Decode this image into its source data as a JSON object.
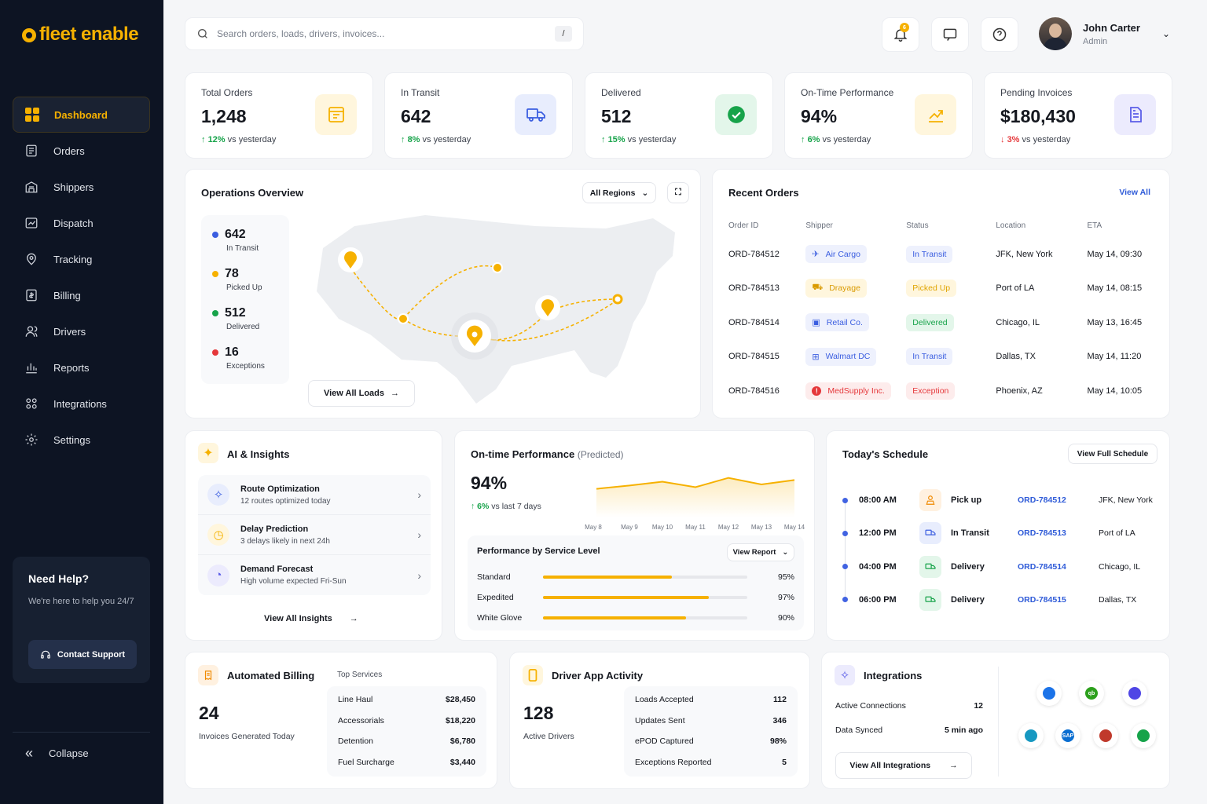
{
  "brand": {
    "name": "fleet enable"
  },
  "nav": [
    {
      "label": "Dashboard",
      "icon": "grid-icon",
      "active": true
    },
    {
      "label": "Orders",
      "icon": "orders-icon"
    },
    {
      "label": "Shippers",
      "icon": "shippers-icon"
    },
    {
      "label": "Dispatch",
      "icon": "dispatch-icon"
    },
    {
      "label": "Tracking",
      "icon": "location-pin-icon"
    },
    {
      "label": "Billing",
      "icon": "billing-icon"
    },
    {
      "label": "Drivers",
      "icon": "drivers-icon"
    },
    {
      "label": "Reports",
      "icon": "reports-icon"
    },
    {
      "label": "Integrations",
      "icon": "integrations-icon"
    },
    {
      "label": "Settings",
      "icon": "gear-icon"
    }
  ],
  "help": {
    "title": "Need Help?",
    "text": "We're here to help you 24/7",
    "button": "Contact Support"
  },
  "collapse": "Collapse",
  "search": {
    "placeholder": "Search orders, loads, drivers, invoices...",
    "shortcut": "/"
  },
  "notifications": {
    "count": "6"
  },
  "user": {
    "name": "John Carter",
    "role": "Admin"
  },
  "kpis": [
    {
      "label": "Total Orders",
      "value": "1,248",
      "change": "12%",
      "suffix": "vs yesterday",
      "dir": "up",
      "color": "#f6b100",
      "bg": "#fff6dd"
    },
    {
      "label": "In Transit",
      "value": "642",
      "change": "8%",
      "suffix": "vs yesterday",
      "dir": "up",
      "color": "#3b5ee0",
      "bg": "#e8edfd"
    },
    {
      "label": "Delivered",
      "value": "512",
      "change": "15%",
      "suffix": "vs yesterday",
      "dir": "up",
      "color": "#17a34a",
      "bg": "#e3f6ea"
    },
    {
      "label": "On-Time Performance",
      "value": "94%",
      "change": "6%",
      "suffix": "vs yesterday",
      "dir": "up",
      "color": "#f6b100",
      "bg": "#fff6dd"
    },
    {
      "label": "Pending Invoices",
      "value": "$180,430",
      "change": "3%",
      "suffix": "vs yesterday",
      "dir": "down",
      "color": "#5b5ee8",
      "bg": "#ecebfd"
    }
  ],
  "operations": {
    "title": "Operations Overview",
    "region": "All Regions",
    "legend": [
      {
        "value": "642",
        "label": "In Transit",
        "color": "#3b5ee0"
      },
      {
        "value": "78",
        "label": "Picked Up",
        "color": "#f6b100"
      },
      {
        "value": "512",
        "label": "Delivered",
        "color": "#17a34a"
      },
      {
        "value": "16",
        "label": "Exceptions",
        "color": "#e5383b"
      }
    ],
    "button": "View All Loads"
  },
  "recent": {
    "title": "Recent Orders",
    "view_all": "View All",
    "headers": [
      "Order ID",
      "Shipper",
      "Status",
      "Location",
      "ETA"
    ],
    "rows": [
      {
        "id": "ORD-784512",
        "shipper": "Air Cargo",
        "sc": "#3b5ee0",
        "sbg": "#eef1fd",
        "status": "In Transit",
        "stc": "#3b5ee0",
        "stbg": "#eef1fd",
        "location": "JFK, New York",
        "eta": "May 14, 09:30"
      },
      {
        "id": "ORD-784513",
        "shipper": "Drayage",
        "sc": "#d99a00",
        "sbg": "#fff6dd",
        "status": "Picked Up",
        "stc": "#e0a400",
        "stbg": "#fff6dd",
        "location": "Port of LA",
        "eta": "May 14, 08:15"
      },
      {
        "id": "ORD-784514",
        "shipper": "Retail Co.",
        "sc": "#3b5ee0",
        "sbg": "#eef1fd",
        "status": "Delivered",
        "stc": "#17a34a",
        "stbg": "#e3f6ea",
        "location": "Chicago, IL",
        "eta": "May 13, 16:45"
      },
      {
        "id": "ORD-784515",
        "shipper": "Walmart DC",
        "sc": "#3b5ee0",
        "sbg": "#eef1fd",
        "status": "In Transit",
        "stc": "#3b5ee0",
        "stbg": "#eef1fd",
        "location": "Dallas, TX",
        "eta": "May 14, 11:20"
      },
      {
        "id": "ORD-784516",
        "shipper": "MedSupply Inc.",
        "sc": "#e5383b",
        "sbg": "#fdecec",
        "status": "Exception",
        "stc": "#e5383b",
        "stbg": "#fdecec",
        "location": "Phoenix, AZ",
        "eta": "May 14, 10:05"
      }
    ]
  },
  "insights": {
    "title": "AI & Insights",
    "items": [
      {
        "title": "Route Optimization",
        "sub": "12 routes optimized today",
        "color": "#3b5ee0",
        "bg": "#e8edfd"
      },
      {
        "title": "Delay Prediction",
        "sub": "3 delays likely in next 24h",
        "color": "#f6b100",
        "bg": "#fff6dd"
      },
      {
        "title": "Demand Forecast",
        "sub": "High volume expected Fri-Sun",
        "color": "#5b5ee8",
        "bg": "#ecebfd"
      }
    ],
    "button": "View All Insights"
  },
  "ontime": {
    "title": "On-time Performance",
    "qualifier": "(Predicted)",
    "value": "94%",
    "change": "6%",
    "change_suffix": "vs last 7 days",
    "service_title": "Performance by Service Level",
    "report": "View Report",
    "services": [
      {
        "label": "Standard",
        "value": "95%",
        "pct": 0.63
      },
      {
        "label": "Expedited",
        "value": "97%",
        "pct": 0.81
      },
      {
        "label": "White Glove",
        "value": "90%",
        "pct": 0.7
      }
    ]
  },
  "chart_data": {
    "type": "area",
    "categories": [
      "May 8",
      "May 9",
      "May 10",
      "May 11",
      "May 12",
      "May 13",
      "May 14"
    ],
    "values": [
      0.52,
      0.58,
      0.65,
      0.55,
      0.72,
      0.6,
      0.68
    ],
    "ylim": [
      0,
      1
    ]
  },
  "schedule": {
    "title": "Today's Schedule",
    "button": "View Full Schedule",
    "items": [
      {
        "time": "08:00 AM",
        "type": "Pick up",
        "order": "ORD-784512",
        "location": "JFK, New York",
        "color": "#f08a00",
        "bg": "#fff1e0"
      },
      {
        "time": "12:00 PM",
        "type": "In Transit",
        "order": "ORD-784513",
        "location": "Port of LA",
        "color": "#3b5ee0",
        "bg": "#e8edfd"
      },
      {
        "time": "04:00 PM",
        "type": "Delivery",
        "order": "ORD-784514",
        "location": "Chicago, IL",
        "color": "#17a34a",
        "bg": "#e3f6ea"
      },
      {
        "time": "06:00 PM",
        "type": "Delivery",
        "order": "ORD-784515",
        "location": "Dallas, TX",
        "color": "#17a34a",
        "bg": "#e3f6ea"
      }
    ]
  },
  "billing": {
    "title": "Automated Billing",
    "value": "24",
    "sub": "Invoices Generated Today",
    "top_label": "Top Services",
    "rows": [
      {
        "label": "Line Haul",
        "value": "$28,450"
      },
      {
        "label": "Accessorials",
        "value": "$18,220"
      },
      {
        "label": "Detention",
        "value": "$6,780"
      },
      {
        "label": "Fuel Surcharge",
        "value": "$3,440"
      }
    ]
  },
  "driver": {
    "title": "Driver App Activity",
    "value": "128",
    "sub": "Active Drivers",
    "rows": [
      {
        "label": "Loads Accepted",
        "value": "112"
      },
      {
        "label": "Updates Sent",
        "value": "346"
      },
      {
        "label": "ePOD Captured",
        "value": "98%"
      },
      {
        "label": "Exceptions Reported",
        "value": "5"
      }
    ]
  },
  "integrations": {
    "title": "Integrations",
    "rows": [
      {
        "label": "Active Connections",
        "value": "12"
      },
      {
        "label": "Data Synced",
        "value": "5 min ago"
      }
    ],
    "button": "View All Integrations",
    "logos": [
      {
        "name": "circle-logo-icon",
        "color": "#1c73e8",
        "text": ""
      },
      {
        "name": "quickbooks-logo-icon",
        "color": "#2ca01c",
        "text": "qb"
      },
      {
        "name": "shield-logo-icon",
        "color": "#4f46e5",
        "text": ""
      },
      {
        "name": "salesforce-logo-icon",
        "color": "#1798c1",
        "text": ""
      },
      {
        "name": "sap-logo-icon",
        "color": "#0a6ed1",
        "text": "SAP"
      },
      {
        "name": "app-logo-icon",
        "color": "#c0392b",
        "text": ""
      },
      {
        "name": "green-logo-icon",
        "color": "#16a34a",
        "text": ""
      }
    ]
  }
}
